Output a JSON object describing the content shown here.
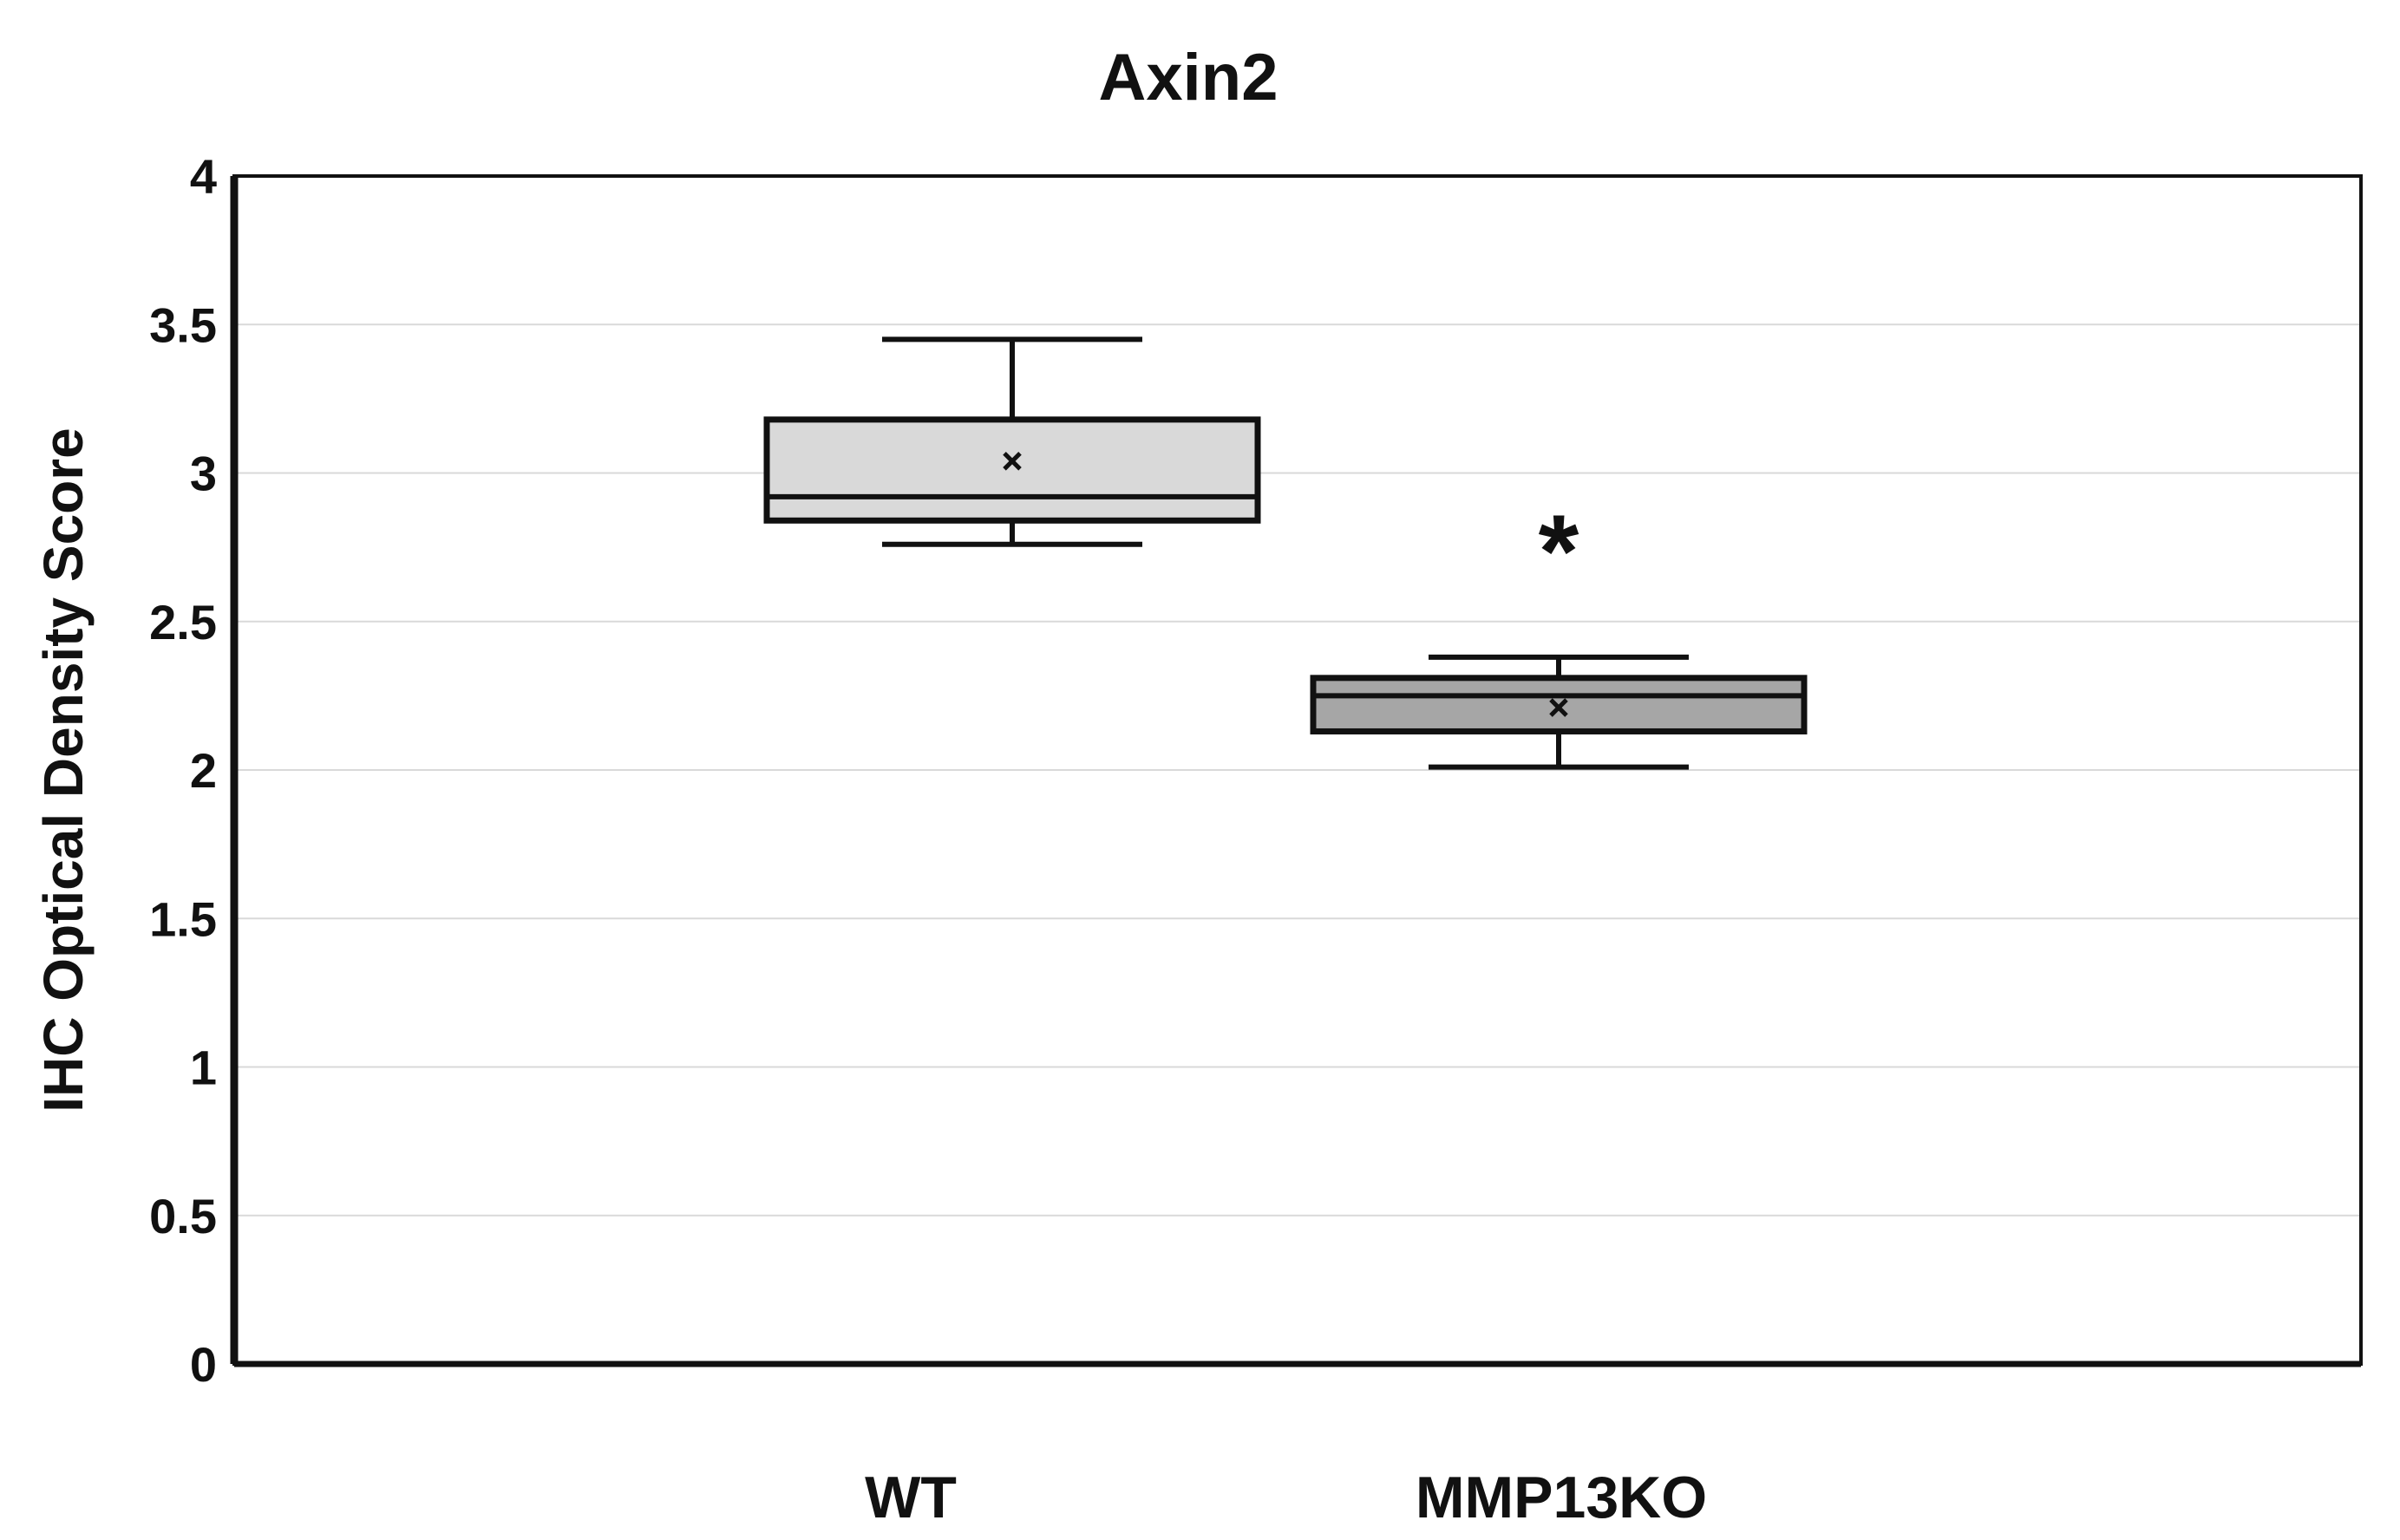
{
  "chart_data": {
    "type": "box",
    "title": "Axin2",
    "xlabel": "",
    "ylabel": "IHC Optical Density Score",
    "ylim": [
      0,
      4
    ],
    "yticks": [
      0,
      0.5,
      1,
      1.5,
      2,
      2.5,
      3,
      3.5,
      4
    ],
    "ytick_labels": [
      "0",
      "0.5",
      "1",
      "1.5",
      "2",
      "2.5",
      "3",
      "3.5",
      "4"
    ],
    "grid": true,
    "categories": [
      "WT",
      "MMP13KO"
    ],
    "boxes": [
      {
        "category": "WT",
        "min": 2.76,
        "q1": 2.84,
        "median": 2.92,
        "q3": 3.18,
        "max": 3.45,
        "mean": 3.04,
        "fill": "#d9d9d9"
      },
      {
        "category": "MMP13KO",
        "min": 2.01,
        "q1": 2.13,
        "median": 2.25,
        "q3": 2.31,
        "max": 2.38,
        "mean": 2.21,
        "fill": "#a6a6a6"
      }
    ],
    "annotations": [
      {
        "text": "*",
        "category": "MMP13KO",
        "y": 2.85
      }
    ]
  }
}
